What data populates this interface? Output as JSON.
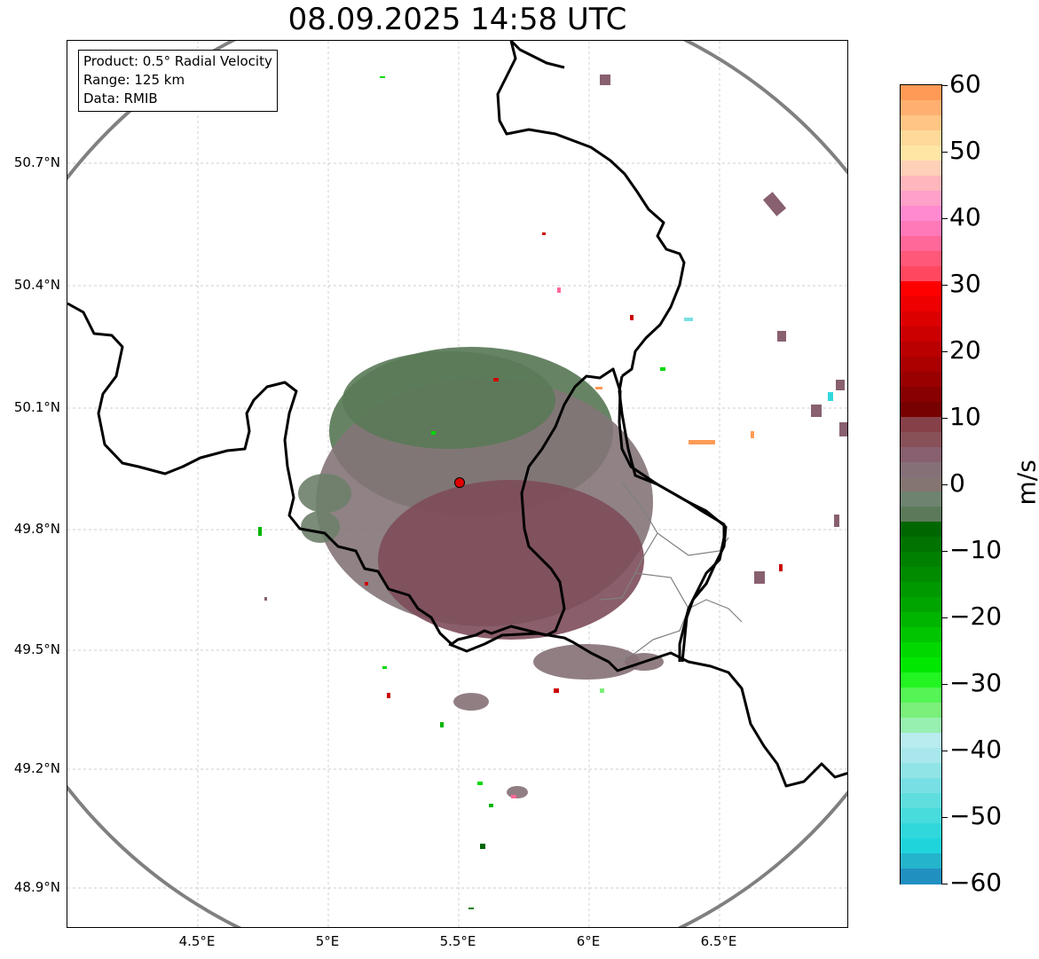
{
  "title": "08.09.2025 14:58 UTC",
  "info": {
    "product": "Product: 0.5° Radial Velocity",
    "range": "Range: 125 km",
    "source": "Data: RMIB"
  },
  "axes": {
    "lat_labels": [
      "50.7°N",
      "50.4°N",
      "50.1°N",
      "49.8°N",
      "49.5°N",
      "49.2°N",
      "48.9°N"
    ],
    "lon_labels": [
      "4.5°E",
      "5°E",
      "5.5°E",
      "6°E",
      "6.5°E"
    ]
  },
  "colorbar": {
    "unit": "m/s",
    "ticks": [
      "60",
      "50",
      "40",
      "30",
      "20",
      "10",
      "0",
      "−10",
      "−20",
      "−30",
      "−40",
      "−50",
      "−60"
    ],
    "colors": [
      "#ff9a56",
      "#ffb070",
      "#ffc585",
      "#ffd99a",
      "#ffe6a5",
      "#ffd0b8",
      "#ffb6bc",
      "#ffa0c8",
      "#ff8ad0",
      "#ff78b8",
      "#ff6898",
      "#ff5878",
      "#ff4860",
      "#ff0000",
      "#ee0000",
      "#dd0000",
      "#cc0000",
      "#bb0000",
      "#aa0000",
      "#990000",
      "#880000",
      "#770000",
      "#864048",
      "#885058",
      "#886070",
      "#857078",
      "#857572",
      "#6e8470",
      "#5c7a5a",
      "#006600",
      "#007300",
      "#008000",
      "#008b00",
      "#009900",
      "#00a500",
      "#00b500",
      "#00c500",
      "#00d800",
      "#00e800",
      "#22f522",
      "#55f555",
      "#7bf07b",
      "#98f0b0",
      "#b8ecef",
      "#a8e8ec",
      "#90e4e6",
      "#78e0e4",
      "#60dedf",
      "#48dcdc",
      "#30d8dc",
      "#20d4dc",
      "#24b4cc",
      "#2090c0"
    ],
    "accent": "#000000"
  },
  "map": {
    "radar_site": "radar-site",
    "range_ring_color": "#808080",
    "border_color": "#000000"
  }
}
